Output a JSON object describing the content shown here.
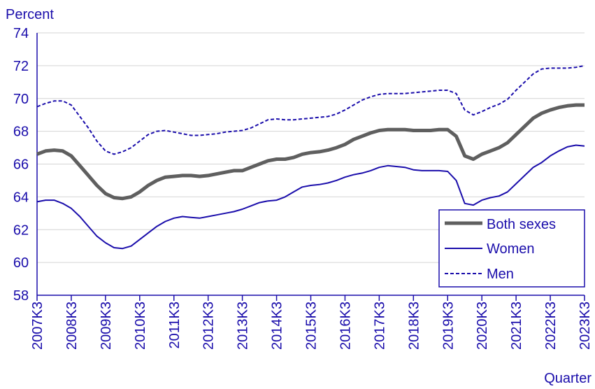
{
  "chart_data": {
    "type": "line",
    "ylabel": "Percent",
    "xlabel": "Quarter",
    "ylim": [
      58,
      74
    ],
    "yticks": [
      58,
      60,
      62,
      64,
      66,
      68,
      70,
      72,
      74
    ],
    "xtick_labels": [
      "2007K3",
      "2008K3",
      "2009K3",
      "2010K3",
      "2011K3",
      "2012K3",
      "2013K3",
      "2014K3",
      "2015K3",
      "2016K3",
      "2017K3",
      "2018K3",
      "2019K3",
      "2020K3",
      "2021K3",
      "2022K3",
      "2023K3"
    ],
    "x": [
      "2007K3",
      "2007K4",
      "2008K1",
      "2008K2",
      "2008K3",
      "2008K4",
      "2009K1",
      "2009K2",
      "2009K3",
      "2009K4",
      "2010K1",
      "2010K2",
      "2010K3",
      "2010K4",
      "2011K1",
      "2011K2",
      "2011K3",
      "2011K4",
      "2012K1",
      "2012K2",
      "2012K3",
      "2012K4",
      "2013K1",
      "2013K2",
      "2013K3",
      "2013K4",
      "2014K1",
      "2014K2",
      "2014K3",
      "2014K4",
      "2015K1",
      "2015K2",
      "2015K3",
      "2015K4",
      "2016K1",
      "2016K2",
      "2016K3",
      "2016K4",
      "2017K1",
      "2017K2",
      "2017K3",
      "2017K4",
      "2018K1",
      "2018K2",
      "2018K3",
      "2018K4",
      "2019K1",
      "2019K2",
      "2019K3",
      "2019K4",
      "2020K1",
      "2020K2",
      "2020K3",
      "2020K4",
      "2021K1",
      "2021K2",
      "2021K3",
      "2021K4",
      "2022K1",
      "2022K2",
      "2022K3",
      "2022K4",
      "2023K1",
      "2023K2",
      "2023K3"
    ],
    "grid": true,
    "legend_position": "bottom-right",
    "colors": {
      "axis_text": "#1a0dab",
      "grid": "#d4d4d4",
      "axis": "#1a0dab"
    },
    "series": [
      {
        "name": "Both sexes",
        "color": "#5f5f5f",
        "style": "solid-thick",
        "values": [
          66.6,
          66.8,
          66.85,
          66.8,
          66.5,
          65.9,
          65.3,
          64.7,
          64.2,
          63.95,
          63.9,
          64.0,
          64.3,
          64.7,
          65.0,
          65.2,
          65.25,
          65.3,
          65.3,
          65.25,
          65.3,
          65.4,
          65.5,
          65.6,
          65.6,
          65.8,
          66.0,
          66.2,
          66.3,
          66.3,
          66.4,
          66.6,
          66.7,
          66.75,
          66.85,
          67.0,
          67.2,
          67.5,
          67.7,
          67.9,
          68.05,
          68.1,
          68.1,
          68.1,
          68.05,
          68.05,
          68.05,
          68.1,
          68.1,
          67.7,
          66.5,
          66.3,
          66.6,
          66.8,
          67.0,
          67.3,
          67.8,
          68.3,
          68.8,
          69.1,
          69.3,
          69.45,
          69.55,
          69.6,
          69.6
        ]
      },
      {
        "name": "Women",
        "color": "#1a0dab",
        "style": "solid",
        "values": [
          63.7,
          63.8,
          63.8,
          63.6,
          63.3,
          62.8,
          62.2,
          61.6,
          61.2,
          60.9,
          60.85,
          61.0,
          61.4,
          61.8,
          62.2,
          62.5,
          62.7,
          62.8,
          62.75,
          62.7,
          62.8,
          62.9,
          63.0,
          63.1,
          63.25,
          63.45,
          63.65,
          63.75,
          63.8,
          64.0,
          64.3,
          64.6,
          64.7,
          64.75,
          64.85,
          65.0,
          65.2,
          65.35,
          65.45,
          65.6,
          65.8,
          65.9,
          65.85,
          65.8,
          65.65,
          65.6,
          65.6,
          65.6,
          65.55,
          65.0,
          63.6,
          63.5,
          63.8,
          63.95,
          64.05,
          64.3,
          64.8,
          65.3,
          65.8,
          66.1,
          66.5,
          66.8,
          67.05,
          67.15,
          67.1
        ]
      },
      {
        "name": "Men",
        "color": "#1a0dab",
        "style": "dashed",
        "values": [
          69.5,
          69.7,
          69.85,
          69.85,
          69.6,
          68.9,
          68.2,
          67.4,
          66.8,
          66.6,
          66.75,
          67.0,
          67.4,
          67.8,
          68.0,
          68.05,
          67.95,
          67.85,
          67.75,
          67.75,
          67.8,
          67.85,
          67.95,
          68.0,
          68.05,
          68.2,
          68.45,
          68.7,
          68.75,
          68.7,
          68.7,
          68.75,
          68.8,
          68.85,
          68.9,
          69.05,
          69.3,
          69.6,
          69.9,
          70.1,
          70.25,
          70.3,
          70.3,
          70.3,
          70.35,
          70.4,
          70.45,
          70.5,
          70.5,
          70.3,
          69.3,
          69.0,
          69.2,
          69.45,
          69.65,
          69.95,
          70.5,
          71.0,
          71.5,
          71.8,
          71.85,
          71.85,
          71.85,
          71.9,
          72.0
        ]
      }
    ]
  }
}
